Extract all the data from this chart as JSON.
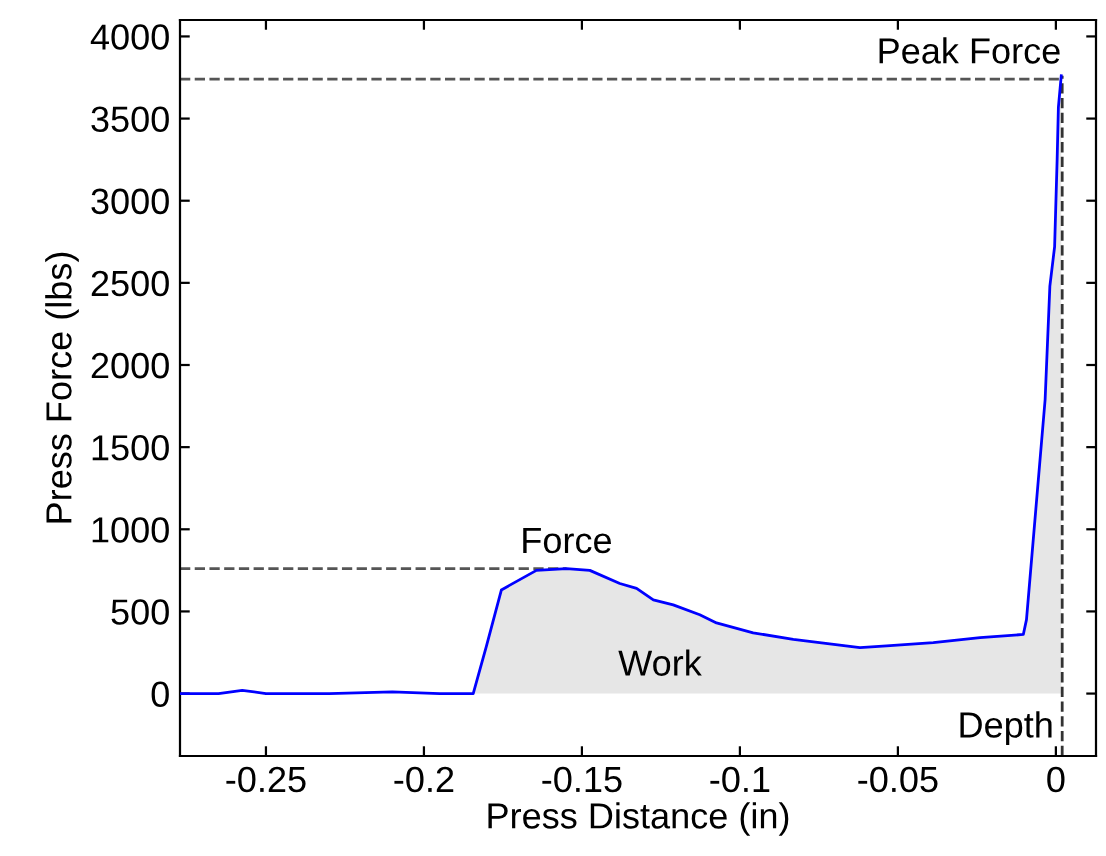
{
  "chart_data": {
    "type": "line",
    "xlabel": "Press Distance (in)",
    "ylabel": "Press Force (lbs)",
    "xlim": [
      -0.2772,
      0.0127
    ],
    "ylim": [
      -380,
      4100
    ],
    "xticks": [
      -0.25,
      -0.2,
      -0.15,
      -0.1,
      -0.05,
      0
    ],
    "yticks": [
      0,
      500,
      1000,
      1500,
      2000,
      2500,
      3000,
      3500,
      4000
    ],
    "grid": false,
    "line_style": "solid",
    "marker": "none",
    "series": [
      {
        "type": "area",
        "color": "#e6e6e6",
        "x": [
          -0.1844,
          -0.1802,
          -0.1755,
          -0.1728,
          -0.1644,
          -0.1549,
          -0.1475,
          -0.138,
          -0.1327,
          -0.1274,
          -0.1211,
          -0.1127,
          -0.1074,
          -0.0958,
          -0.0831,
          -0.062,
          -0.0536,
          -0.0388,
          -0.024,
          -0.0103,
          -0.0093,
          -0.0034,
          -0.0019,
          -0.0004,
          0.0004,
          0.0008,
          0.0017
        ],
        "values": [
          0,
          290,
          630,
          660,
          750,
          760,
          750,
          670,
          640,
          570,
          540,
          480,
          430,
          370,
          330,
          280,
          290,
          310,
          340,
          360,
          450,
          1790,
          2480,
          2720,
          3250,
          3570,
          3760
        ]
      },
      {
        "color": "#0000ff",
        "x": [
          -0.2772,
          -0.265,
          -0.2575,
          -0.25,
          -0.23,
          -0.21,
          -0.195,
          -0.1844,
          -0.1802,
          -0.1755,
          -0.1728,
          -0.1644,
          -0.1549,
          -0.1475,
          -0.138,
          -0.1327,
          -0.1274,
          -0.1211,
          -0.1127,
          -0.1074,
          -0.0958,
          -0.0831,
          -0.062,
          -0.0536,
          -0.0388,
          -0.024,
          -0.0103,
          -0.0093,
          -0.0034,
          -0.0019,
          -0.0004,
          0.0004,
          0.0008,
          0.0017
        ],
        "values": [
          0,
          0,
          20,
          0,
          0,
          10,
          0,
          0,
          290,
          630,
          660,
          750,
          760,
          750,
          670,
          640,
          570,
          540,
          480,
          430,
          370,
          330,
          280,
          290,
          310,
          340,
          360,
          450,
          1790,
          2480,
          2720,
          3250,
          3570,
          3760
        ]
      }
    ],
    "ref_lines": [
      {
        "axis": "y",
        "value": 3740,
        "label": "Peak Force",
        "color": "#555555",
        "line_style": "dashed"
      },
      {
        "axis": "y",
        "value": 760,
        "label": "Force",
        "color": "#555555",
        "line_style": "dashed"
      },
      {
        "axis": "x",
        "value": 0.002,
        "label": "Depth",
        "color": "#333333",
        "line_style": "dashed"
      }
    ],
    "annotations": [
      "Work"
    ]
  }
}
